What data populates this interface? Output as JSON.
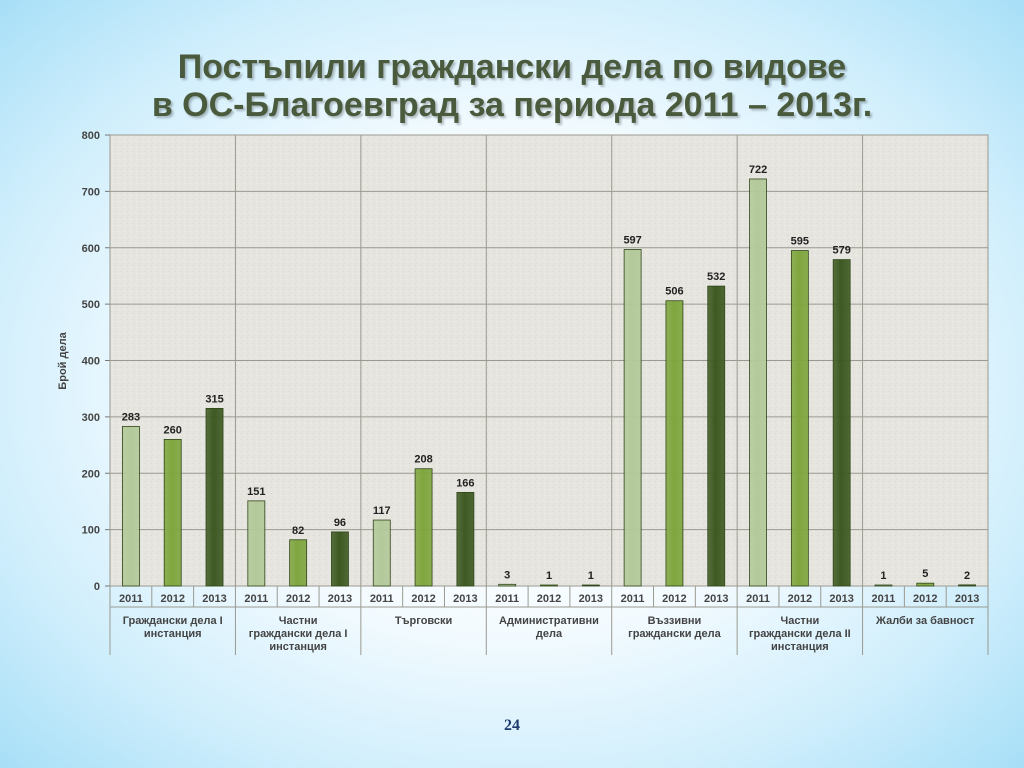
{
  "title": {
    "line1": "Постъпили граждански дела по видове",
    "line2": "в ОС-Благоевград  за периода 2011 – 2013г."
  },
  "page_number": "24",
  "colors": {
    "2011": "#b3c99a",
    "2012": "#7fa63f",
    "2013": "#3e5a22"
  },
  "chart_data": {
    "type": "bar",
    "title": "",
    "xlabel": "",
    "ylabel": "Брой дела",
    "ylim": [
      0,
      800
    ],
    "yticks": [
      0,
      100,
      200,
      300,
      400,
      500,
      600,
      700,
      800
    ],
    "grid": true,
    "years": [
      "2011",
      "2012",
      "2013"
    ],
    "groups": [
      {
        "label": "Граждански дела I инстанция",
        "label_lines": [
          "Граждански дела I",
          "инстанция"
        ],
        "values": [
          283,
          260,
          315
        ]
      },
      {
        "label": "Частни граждански дела I инстанция",
        "label_lines": [
          "Частни",
          "граждански дела I",
          "инстанция"
        ],
        "values": [
          151,
          82,
          96
        ]
      },
      {
        "label": "Търговски",
        "label_lines": [
          "Търговски"
        ],
        "values": [
          117,
          208,
          166
        ]
      },
      {
        "label": "Административни дела",
        "label_lines": [
          "Административни",
          "дела"
        ],
        "values": [
          3,
          1,
          1
        ]
      },
      {
        "label": "Въззивни граждански дела",
        "label_lines": [
          "Въззивни",
          "граждански дела"
        ],
        "values": [
          597,
          506,
          532
        ]
      },
      {
        "label": "Частни граждански дела II инстанция",
        "label_lines": [
          "Частни",
          "граждански дела II",
          "инстанция"
        ],
        "values": [
          722,
          595,
          579
        ]
      },
      {
        "label": "Жалби за бавност",
        "label_lines": [
          "Жалби за бавност"
        ],
        "values": [
          1,
          5,
          2
        ]
      }
    ]
  }
}
